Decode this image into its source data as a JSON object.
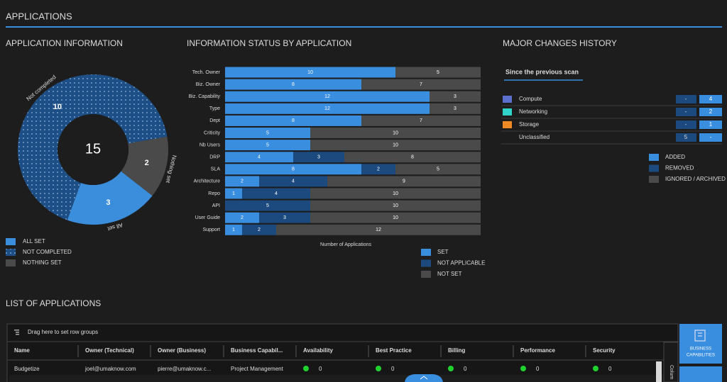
{
  "header": {
    "title": "APPLICATIONS"
  },
  "chart_data": [
    {
      "type": "donut",
      "title": "APPLICATION INFORMATION",
      "categories": [
        "All set",
        "Not completed",
        "Nothing set"
      ],
      "legend_labels": [
        "ALL SET",
        "NOT COMPLETED",
        "NOTHING SET"
      ],
      "values": [
        3,
        10,
        2
      ],
      "colors": [
        "#3a8edc",
        "#1d4f86",
        "#4a4a4a"
      ],
      "center_label": 15
    },
    {
      "type": "stacked-barh",
      "title": "INFORMATION STATUS BY APPLICATION",
      "xlabel": "Number of Applications",
      "xlim": [
        0,
        15
      ],
      "categories": [
        "Tech. Owner",
        "Biz. Owner",
        "Biz. Capability",
        "Type",
        "Dept",
        "Criticity",
        "Nb Users",
        "DRP",
        "SLA",
        "Architecture",
        "Repo",
        "API",
        "User Guide",
        "Support"
      ],
      "series": [
        {
          "name": "SET",
          "color": "#3a8ee0",
          "values": [
            10,
            8,
            12,
            12,
            8,
            5,
            5,
            4,
            8,
            2,
            1,
            0,
            2,
            1
          ]
        },
        {
          "name": "NOT APPLICABLE",
          "color": "#1c4a7e",
          "values": [
            0,
            0,
            0,
            0,
            0,
            0,
            0,
            3,
            2,
            4,
            4,
            5,
            3,
            2
          ]
        },
        {
          "name": "NOT SET",
          "color": "#4a4a4a",
          "values": [
            5,
            7,
            3,
            3,
            7,
            10,
            10,
            8,
            5,
            9,
            10,
            10,
            10,
            12
          ]
        }
      ]
    }
  ],
  "major_changes": {
    "title": "MAJOR CHANGES HISTORY",
    "subtitle": "Since the previous scan",
    "rows": [
      {
        "name": "Compute",
        "color": "#5b6fcc",
        "removed": "-",
        "added": "4"
      },
      {
        "name": "Networking",
        "color": "#2fd3c9",
        "removed": "-",
        "added": "2"
      },
      {
        "name": "Storage",
        "color": "#f08a24",
        "removed": "-",
        "added": "1"
      },
      {
        "name": "Unclassified",
        "color": null,
        "removed": "5",
        "added": "-"
      }
    ],
    "legend": [
      {
        "name": "ADDED",
        "color": "#3a8ee0"
      },
      {
        "name": "REMOVED",
        "color": "#1c4a7e"
      },
      {
        "name": "IGNORED / ARCHIVED",
        "color": "#4a4a4a"
      }
    ]
  },
  "applications_list": {
    "title": "LIST OF APPLICATIONS",
    "group_hint": "Drag here to set row groups",
    "columns": [
      "Name",
      "Owner (Technical)",
      "Owner (Business)",
      "Business Capabil...",
      "Availability",
      "Best Practice",
      "Billing",
      "Performance",
      "Security"
    ],
    "rows": [
      [
        "Budgetize",
        "joel@umaknow.com",
        "pierre@umaknow.c...",
        "Project Management",
        "0",
        "0",
        "0",
        "0",
        "0"
      ]
    ],
    "side_button": [
      "BUSINESS",
      "CAPABILITIES"
    ],
    "columns_tab": "Colum"
  }
}
